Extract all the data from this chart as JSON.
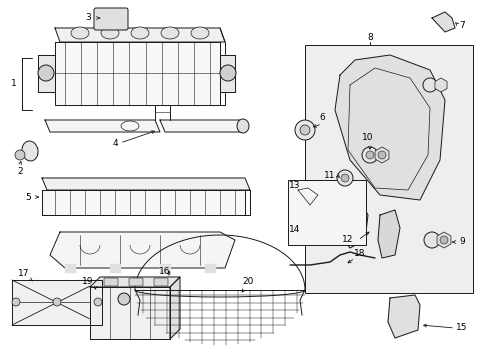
{
  "bg_color": "#ffffff",
  "fig_width": 4.89,
  "fig_height": 3.6,
  "dpi": 100,
  "lc": "#1a1a1a",
  "lw": 0.7,
  "font_size": 6.5,
  "label_color": "#000000"
}
